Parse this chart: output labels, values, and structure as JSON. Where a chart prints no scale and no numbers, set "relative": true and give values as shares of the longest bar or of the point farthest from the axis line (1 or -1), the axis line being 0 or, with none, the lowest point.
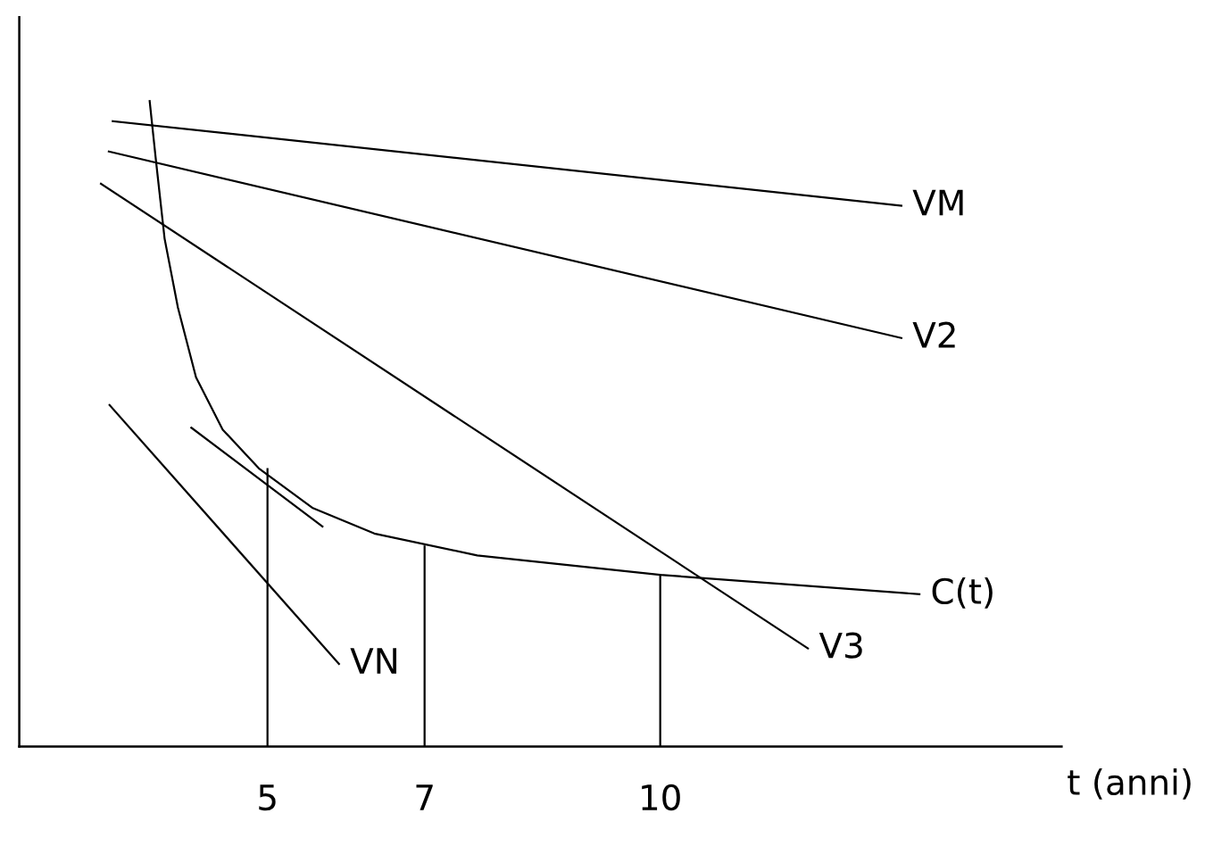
{
  "chart_data": {
    "type": "line",
    "relative": true,
    "xlabel": "t (anni)",
    "xlim": [
      1.84,
      15.11
    ],
    "xticks": [
      5,
      7,
      10
    ],
    "grid": false,
    "legend": false,
    "marker": "none",
    "line_style": "solid",
    "series": [
      {
        "name": "VM",
        "color": "#000000",
        "x": [
          3.03,
          13.07
        ],
        "values": [
          0.969,
          0.838
        ]
      },
      {
        "name": "V2",
        "color": "#000000",
        "x": [
          2.98,
          13.07
        ],
        "values": [
          0.922,
          0.633
        ]
      },
      {
        "name": "V3",
        "color": "#000000",
        "x": [
          2.88,
          11.88
        ],
        "values": [
          0.872,
          0.152
        ]
      },
      {
        "name": "VN",
        "color": "#000000",
        "x": [
          2.99,
          5.91
        ],
        "values": [
          0.529,
          0.128
        ]
      },
      {
        "color": "#000000",
        "x": [
          4.03,
          5.7
        ],
        "values": [
          0.494,
          0.341
        ]
      },
      {
        "name": "C(t)",
        "color": "#000000",
        "x": [
          3.5,
          3.58,
          3.69,
          3.86,
          4.09,
          4.43,
          4.89,
          5.57,
          6.36,
          7.67,
          10,
          13.3
        ],
        "values": [
          1.0,
          0.908,
          0.787,
          0.68,
          0.572,
          0.491,
          0.431,
          0.37,
          0.33,
          0.296,
          0.266,
          0.236
        ]
      },
      {
        "color": "#000000",
        "x": [
          5,
          5
        ],
        "values": [
          0,
          0.43
        ]
      },
      {
        "color": "#000000",
        "x": [
          7,
          7
        ],
        "values": [
          0,
          0.31
        ]
      },
      {
        "color": "#000000",
        "x": [
          10,
          10
        ],
        "values": [
          0,
          0.266
        ]
      }
    ]
  }
}
